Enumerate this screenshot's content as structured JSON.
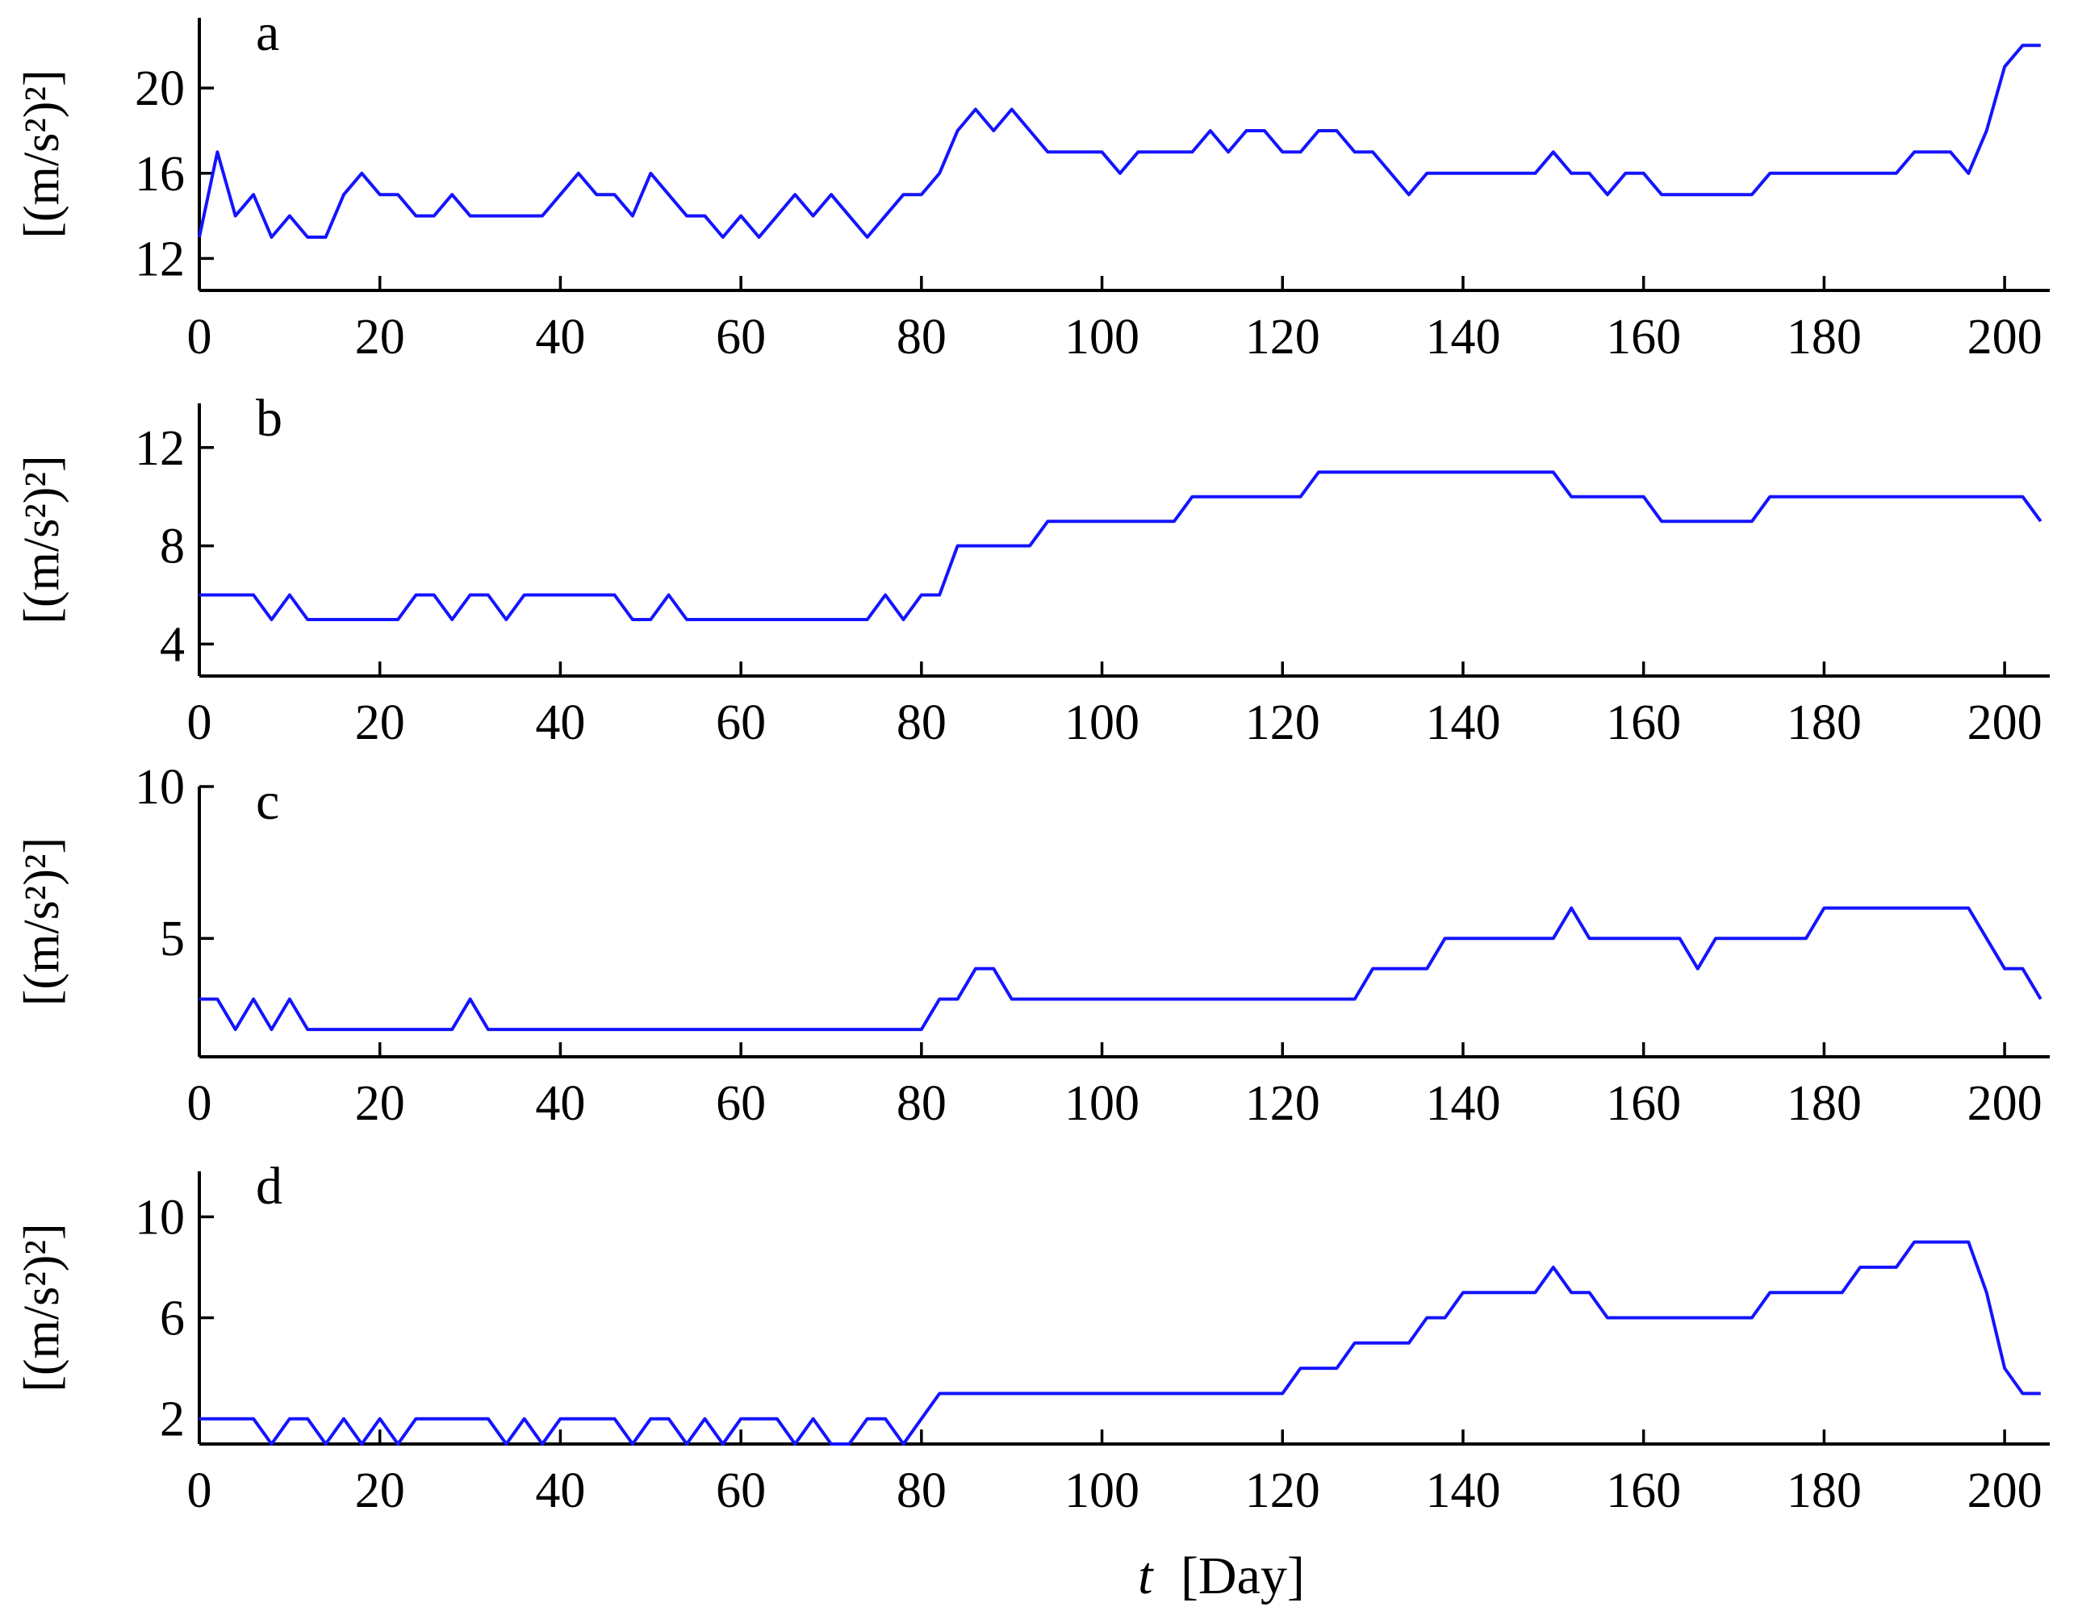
{
  "chart_data": [
    {
      "type": "line",
      "panel_label": "a",
      "ylabel": "[(m/s²)²]",
      "xlim": [
        0,
        205
      ],
      "ylim": [
        10.5,
        23.3
      ],
      "xticks": [
        0,
        20,
        40,
        60,
        80,
        100,
        120,
        140,
        160,
        180,
        200
      ],
      "yticks": [
        12,
        16,
        20
      ],
      "color": "#1414ff",
      "series": [
        {
          "x": [
            0,
            2,
            4,
            6,
            8,
            10,
            12,
            14,
            16,
            18,
            20,
            22,
            24,
            26,
            28,
            30,
            32,
            34,
            36,
            38,
            40,
            42,
            44,
            46,
            48,
            50,
            52,
            54,
            56,
            58,
            60,
            62,
            64,
            66,
            68,
            70,
            72,
            74,
            76,
            78,
            80,
            82,
            84,
            86,
            88,
            90,
            92,
            94,
            96,
            98,
            100,
            102,
            104,
            106,
            108,
            110,
            112,
            114,
            116,
            118,
            120,
            122,
            124,
            126,
            128,
            130,
            132,
            134,
            136,
            138,
            140,
            142,
            144,
            146,
            148,
            150,
            152,
            154,
            156,
            158,
            160,
            162,
            164,
            166,
            168,
            170,
            172,
            174,
            176,
            178,
            180,
            182,
            184,
            186,
            188,
            190,
            192,
            194,
            196,
            198,
            200,
            202,
            204
          ],
          "values": [
            13,
            17,
            14,
            15,
            13,
            14,
            13,
            13,
            15,
            16,
            15,
            15,
            14,
            14,
            15,
            14,
            14,
            14,
            14,
            14,
            15,
            16,
            15,
            15,
            14,
            16,
            15,
            14,
            14,
            13,
            14,
            13,
            14,
            15,
            14,
            15,
            14,
            13,
            14,
            15,
            15,
            16,
            18,
            19,
            18,
            19,
            18,
            17,
            17,
            17,
            17,
            16,
            17,
            17,
            17,
            17,
            18,
            17,
            18,
            18,
            17,
            17,
            18,
            18,
            17,
            17,
            16,
            15,
            16,
            16,
            16,
            16,
            16,
            16,
            16,
            17,
            16,
            16,
            15,
            16,
            16,
            15,
            15,
            15,
            15,
            15,
            15,
            16,
            16,
            16,
            16,
            16,
            16,
            16,
            16,
            17,
            17,
            17,
            16,
            18,
            21,
            22,
            22
          ]
        }
      ]
    },
    {
      "type": "line",
      "panel_label": "b",
      "ylabel": "[(m/s²)²]",
      "xlim": [
        0,
        205
      ],
      "ylim": [
        2.7,
        13.8
      ],
      "xticks": [
        0,
        20,
        40,
        60,
        80,
        100,
        120,
        140,
        160,
        180,
        200
      ],
      "yticks": [
        4,
        8,
        12
      ],
      "color": "#1414ff",
      "series": [
        {
          "x": [
            0,
            2,
            4,
            6,
            8,
            10,
            12,
            14,
            16,
            18,
            20,
            22,
            24,
            26,
            28,
            30,
            32,
            34,
            36,
            38,
            40,
            42,
            44,
            46,
            48,
            50,
            52,
            54,
            56,
            58,
            60,
            62,
            64,
            66,
            68,
            70,
            72,
            74,
            76,
            78,
            80,
            82,
            84,
            86,
            88,
            90,
            92,
            94,
            96,
            98,
            100,
            102,
            104,
            106,
            108,
            110,
            112,
            114,
            116,
            118,
            120,
            122,
            124,
            126,
            128,
            130,
            132,
            134,
            136,
            138,
            140,
            142,
            144,
            146,
            148,
            150,
            152,
            154,
            156,
            158,
            160,
            162,
            164,
            166,
            168,
            170,
            172,
            174,
            176,
            178,
            180,
            182,
            184,
            186,
            188,
            190,
            192,
            194,
            196,
            198,
            200,
            202,
            204
          ],
          "values": [
            6,
            6,
            6,
            6,
            5,
            6,
            5,
            5,
            5,
            5,
            5,
            5,
            6,
            6,
            5,
            6,
            6,
            5,
            6,
            6,
            6,
            6,
            6,
            6,
            5,
            5,
            6,
            5,
            5,
            5,
            5,
            5,
            5,
            5,
            5,
            5,
            5,
            5,
            6,
            5,
            6,
            6,
            8,
            8,
            8,
            8,
            8,
            9,
            9,
            9,
            9,
            9,
            9,
            9,
            9,
            10,
            10,
            10,
            10,
            10,
            10,
            10,
            11,
            11,
            11,
            11,
            11,
            11,
            11,
            11,
            11,
            11,
            11,
            11,
            11,
            11,
            10,
            10,
            10,
            10,
            10,
            9,
            9,
            9,
            9,
            9,
            9,
            10,
            10,
            10,
            10,
            10,
            10,
            10,
            10,
            10,
            10,
            10,
            10,
            10,
            10,
            10,
            9
          ]
        }
      ]
    },
    {
      "type": "line",
      "panel_label": "c",
      "ylabel": "[(m/s²)²]",
      "xlim": [
        0,
        205
      ],
      "ylim": [
        1.1,
        10
      ],
      "xticks": [
        0,
        20,
        40,
        60,
        80,
        100,
        120,
        140,
        160,
        180,
        200
      ],
      "yticks": [
        5,
        10
      ],
      "color": "#1414ff",
      "series": [
        {
          "x": [
            0,
            2,
            4,
            6,
            8,
            10,
            12,
            14,
            16,
            18,
            20,
            22,
            24,
            26,
            28,
            30,
            32,
            34,
            36,
            38,
            40,
            42,
            44,
            46,
            48,
            50,
            52,
            54,
            56,
            58,
            60,
            62,
            64,
            66,
            68,
            70,
            72,
            74,
            76,
            78,
            80,
            82,
            84,
            86,
            88,
            90,
            92,
            94,
            96,
            98,
            100,
            102,
            104,
            106,
            108,
            110,
            112,
            114,
            116,
            118,
            120,
            122,
            124,
            126,
            128,
            130,
            132,
            134,
            136,
            138,
            140,
            142,
            144,
            146,
            148,
            150,
            152,
            154,
            156,
            158,
            160,
            162,
            164,
            166,
            168,
            170,
            172,
            174,
            176,
            178,
            180,
            182,
            184,
            186,
            188,
            190,
            192,
            194,
            196,
            198,
            200,
            202,
            204
          ],
          "values": [
            3,
            3,
            2,
            3,
            2,
            3,
            2,
            2,
            2,
            2,
            2,
            2,
            2,
            2,
            2,
            3,
            2,
            2,
            2,
            2,
            2,
            2,
            2,
            2,
            2,
            2,
            2,
            2,
            2,
            2,
            2,
            2,
            2,
            2,
            2,
            2,
            2,
            2,
            2,
            2,
            2,
            3,
            3,
            4,
            4,
            3,
            3,
            3,
            3,
            3,
            3,
            3,
            3,
            3,
            3,
            3,
            3,
            3,
            3,
            3,
            3,
            3,
            3,
            3,
            3,
            4,
            4,
            4,
            4,
            5,
            5,
            5,
            5,
            5,
            5,
            5,
            6,
            5,
            5,
            5,
            5,
            5,
            5,
            4,
            5,
            5,
            5,
            5,
            5,
            5,
            6,
            6,
            6,
            6,
            6,
            6,
            6,
            6,
            6,
            5,
            4,
            4,
            3
          ]
        }
      ]
    },
    {
      "type": "line",
      "panel_label": "d",
      "ylabel": "[(m/s²)²]",
      "xlim": [
        0,
        205
      ],
      "ylim": [
        1.0,
        11.8
      ],
      "xticks": [
        0,
        20,
        40,
        60,
        80,
        100,
        120,
        140,
        160,
        180,
        200
      ],
      "yticks": [
        2,
        6,
        10
      ],
      "color": "#1414ff",
      "series": [
        {
          "x": [
            0,
            2,
            4,
            6,
            8,
            10,
            12,
            14,
            16,
            18,
            20,
            22,
            24,
            26,
            28,
            30,
            32,
            34,
            36,
            38,
            40,
            42,
            44,
            46,
            48,
            50,
            52,
            54,
            56,
            58,
            60,
            62,
            64,
            66,
            68,
            70,
            72,
            74,
            76,
            78,
            80,
            82,
            84,
            86,
            88,
            90,
            92,
            94,
            96,
            98,
            100,
            102,
            104,
            106,
            108,
            110,
            112,
            114,
            116,
            118,
            120,
            122,
            124,
            126,
            128,
            130,
            132,
            134,
            136,
            138,
            140,
            142,
            144,
            146,
            148,
            150,
            152,
            154,
            156,
            158,
            160,
            162,
            164,
            166,
            168,
            170,
            172,
            174,
            176,
            178,
            180,
            182,
            184,
            186,
            188,
            190,
            192,
            194,
            196,
            198,
            200,
            202,
            204
          ],
          "values": [
            2,
            2,
            2,
            2,
            1,
            2,
            2,
            1,
            2,
            1,
            2,
            1,
            2,
            2,
            2,
            2,
            2,
            1,
            2,
            1,
            2,
            2,
            2,
            2,
            1,
            2,
            2,
            1,
            2,
            1,
            2,
            2,
            2,
            1,
            2,
            1,
            1,
            2,
            2,
            1,
            2,
            3,
            3,
            3,
            3,
            3,
            3,
            3,
            3,
            3,
            3,
            3,
            3,
            3,
            3,
            3,
            3,
            3,
            3,
            3,
            3,
            4,
            4,
            4,
            5,
            5,
            5,
            5,
            6,
            6,
            7,
            7,
            7,
            7,
            7,
            8,
            7,
            7,
            6,
            6,
            6,
            6,
            6,
            6,
            6,
            6,
            6,
            7,
            7,
            7,
            7,
            7,
            8,
            8,
            8,
            9,
            9,
            9,
            9,
            7,
            4,
            3,
            3
          ]
        }
      ]
    }
  ],
  "xlabel": {
    "variable": "t",
    "unit": "[Day]"
  }
}
